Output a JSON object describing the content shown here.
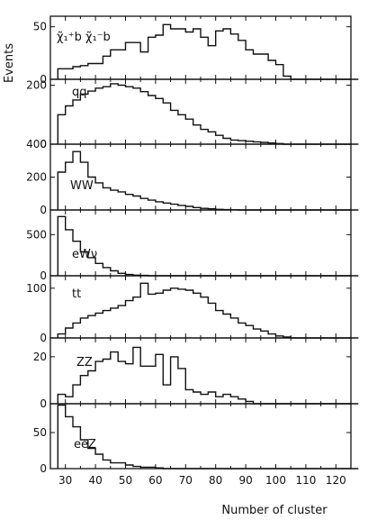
{
  "chart_data": {
    "type": "histogram-stack",
    "ylabel": "Events",
    "xlabel": "Number of cluster",
    "xlim": [
      25,
      125
    ],
    "xticks": [
      30,
      40,
      50,
      60,
      70,
      80,
      90,
      100,
      110,
      120
    ],
    "bin_width": 2.5,
    "bin_start": 27.5,
    "panels": [
      {
        "label": "χ̃₁⁺b χ̃₁⁻b",
        "ylim": [
          0,
          60
        ],
        "yticks": [
          0,
          50
        ],
        "values": [
          10,
          10,
          12,
          13,
          15,
          15,
          22,
          28,
          28,
          35,
          35,
          26,
          40,
          42,
          52,
          48,
          48,
          45,
          48,
          40,
          32,
          46,
          48,
          43,
          37,
          28,
          24,
          24,
          18,
          14,
          3,
          0,
          0,
          0,
          0,
          0,
          0,
          0,
          0,
          0
        ]
      },
      {
        "label": "qq",
        "ylim": [
          0,
          220
        ],
        "yticks": [
          0,
          200
        ],
        "values": [
          100,
          130,
          150,
          170,
          180,
          190,
          195,
          205,
          200,
          195,
          190,
          178,
          165,
          155,
          140,
          115,
          100,
          85,
          65,
          50,
          42,
          30,
          20,
          14,
          12,
          10,
          8,
          6,
          4,
          2,
          0,
          0,
          0,
          0,
          0,
          0,
          0,
          0,
          0,
          0
        ]
      },
      {
        "label": "WW",
        "ylim": [
          0,
          400
        ],
        "yticks": [
          0,
          200,
          400
        ],
        "values": [
          230,
          290,
          355,
          290,
          200,
          165,
          135,
          120,
          110,
          95,
          85,
          70,
          60,
          50,
          42,
          35,
          28,
          22,
          15,
          10,
          7,
          4,
          2,
          1,
          0,
          0,
          0,
          0,
          0,
          0,
          0,
          0,
          0,
          0,
          0,
          0,
          0,
          0,
          0,
          0
        ]
      },
      {
        "label": "eWν",
        "ylim": [
          0,
          800
        ],
        "yticks": [
          0,
          500
        ],
        "values": [
          720,
          560,
          420,
          290,
          220,
          150,
          100,
          60,
          30,
          15,
          8,
          4,
          0,
          0,
          0,
          0,
          0,
          0,
          0,
          0,
          0,
          0,
          0,
          0,
          0,
          0,
          0,
          0,
          0,
          0,
          0,
          0,
          0,
          0,
          0,
          0,
          0,
          0,
          0,
          0
        ]
      },
      {
        "label": "tt",
        "ylim": [
          0,
          125
        ],
        "yticks": [
          0,
          100
        ],
        "values": [
          8,
          20,
          30,
          40,
          45,
          50,
          55,
          60,
          65,
          75,
          82,
          110,
          88,
          90,
          96,
          100,
          98,
          96,
          90,
          82,
          70,
          55,
          48,
          40,
          30,
          25,
          18,
          14,
          8,
          4,
          2,
          0,
          0,
          0,
          0,
          0,
          0,
          0,
          0,
          0
        ]
      },
      {
        "label": "ZZ",
        "ylim": [
          0,
          28
        ],
        "yticks": [
          0,
          20
        ],
        "values": [
          4,
          3,
          8,
          12,
          14,
          18,
          19,
          22,
          18,
          17,
          24,
          16,
          16,
          21,
          8,
          20,
          15,
          6,
          5,
          4,
          5,
          3,
          4,
          3,
          2,
          1,
          0,
          0,
          0,
          0,
          0,
          0,
          0,
          0,
          0,
          0,
          0,
          0,
          0,
          0
        ]
      },
      {
        "label": "eeZ",
        "ylim": [
          0,
          90
        ],
        "yticks": [
          0,
          50
        ],
        "values": [
          88,
          72,
          58,
          40,
          28,
          20,
          12,
          8,
          8,
          5,
          3,
          2,
          2,
          1,
          0,
          0,
          0,
          0,
          0,
          0,
          0,
          0,
          0,
          0,
          0,
          0,
          0,
          0,
          0,
          0,
          0,
          0,
          0,
          0,
          0,
          0,
          0,
          0,
          0,
          0
        ]
      }
    ]
  }
}
